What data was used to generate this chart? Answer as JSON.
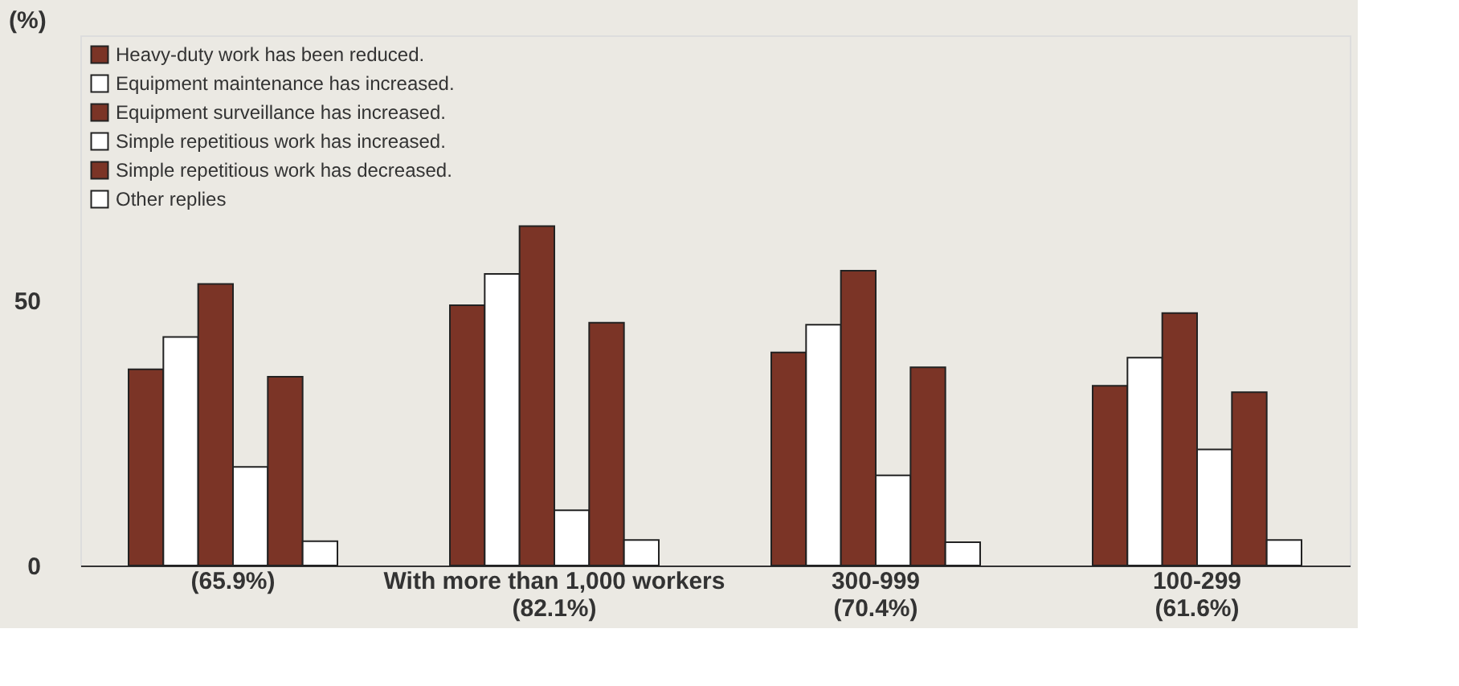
{
  "chart_data": {
    "type": "bar",
    "ylabel": "(%)",
    "categories": [
      "(65.9%)",
      "With more than 1,000 workers\n(82.1%)",
      "300-999\n(70.4%)",
      "100-299\n(61.6%)"
    ],
    "series": [
      {
        "name": "Heavy-duty work has been reduced.",
        "color": "#7b3426",
        "values": [
          37.0,
          49.1,
          40.2,
          33.9
        ]
      },
      {
        "name": "Equipment maintenance has increased.",
        "color": "#ffffff",
        "values": [
          43.1,
          55.0,
          45.4,
          39.2
        ]
      },
      {
        "name": "Equipment surveillance has increased.",
        "color": "#7b3426",
        "values": [
          53.1,
          64.0,
          55.6,
          47.6
        ]
      },
      {
        "name": "Simple repetitious work has increased.",
        "color": "#ffffff",
        "values": [
          18.6,
          10.4,
          17.0,
          21.9
        ]
      },
      {
        "name": "Simple repetitious work has decreased.",
        "color": "#7b3426",
        "values": [
          35.6,
          45.8,
          37.4,
          32.7
        ]
      },
      {
        "name": "Other replies",
        "color": "#ffffff",
        "values": [
          4.6,
          4.8,
          4.4,
          4.8
        ]
      }
    ],
    "ylim": [
      0,
      100
    ],
    "yticks": [
      0,
      50
    ],
    "grid": false,
    "legend": "top left"
  }
}
